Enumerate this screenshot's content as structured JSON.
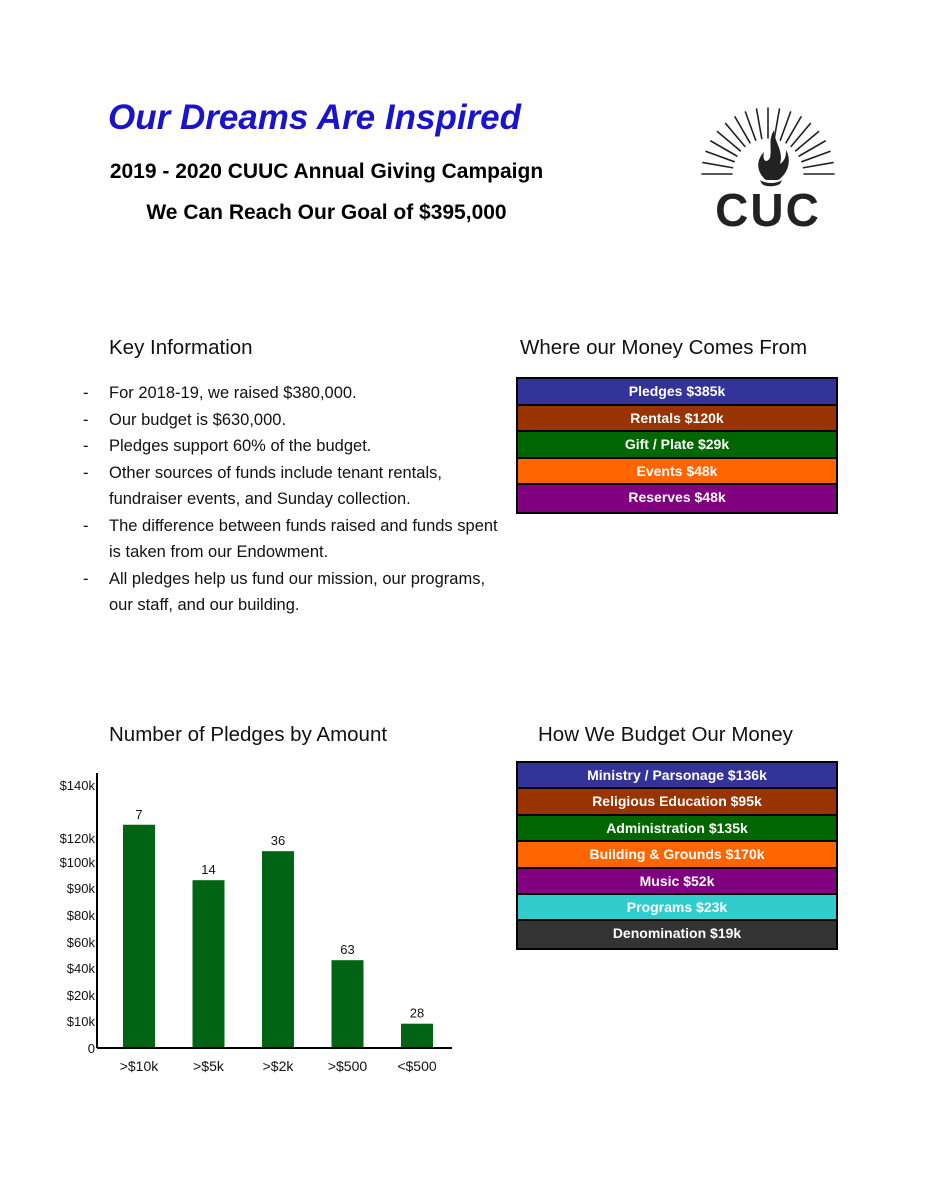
{
  "header": {
    "headline": "Our Dreams Are Inspired",
    "subtitle": "2019 - 2020 CUUC Annual Giving Campaign",
    "goal": "We Can Reach Our Goal of $395,000",
    "logo_text": "CUC"
  },
  "key_info": {
    "title": "Key Information",
    "bullet": "-",
    "items": [
      "For 2018-19, we raised $380,000.",
      "Our budget is $630,000.",
      "Pledges support 60% of the budget.",
      "Other sources of funds include tenant rentals, fundraiser events, and Sunday collection.",
      "The difference between funds raised and funds spent is taken from our Endowment.",
      "All pledges help us fund our mission, our programs, our staff, and our building."
    ]
  },
  "sources": {
    "title": "Where our Money Comes From",
    "items": [
      {
        "label": "Pledges  $385k",
        "color": "#333399"
      },
      {
        "label": "Rentals  $120k",
        "color": "#993300"
      },
      {
        "label": "Gift / Plate  $29k",
        "color": "#006600"
      },
      {
        "label": "Events  $48k",
        "color": "#ff6600"
      },
      {
        "label": "Reserves $48k",
        "color": "#800080"
      }
    ]
  },
  "budget": {
    "title": "How We Budget Our Money",
    "items": [
      {
        "label": "Ministry / Parsonage  $136k",
        "color": "#333399"
      },
      {
        "label": "Religious Education  $95k",
        "color": "#993300"
      },
      {
        "label": "Administration  $135k",
        "color": "#006600"
      },
      {
        "label": "Building & Grounds  $170k",
        "color": "#ff6600"
      },
      {
        "label": "Music  $52k",
        "color": "#800080"
      },
      {
        "label": "Programs  $23k",
        "color": "#33cccc"
      },
      {
        "label": "Denomination  $19k",
        "color": "#333333"
      }
    ]
  },
  "chart_data": {
    "type": "bar",
    "title": "Number of Pledges by Amount",
    "xlabel": "",
    "ylabel": "",
    "categories": [
      ">$10k",
      ">$5k",
      ">$2k",
      ">$500",
      "<$500"
    ],
    "values": [
      125000,
      93000,
      109000,
      46000,
      9000
    ],
    "data_labels": [
      "7",
      "14",
      "36",
      "63",
      "28"
    ],
    "y_ticks": [
      "0",
      "$10k",
      "$20k",
      "$40k",
      "$60k",
      "$80k",
      "$90k",
      "$100k",
      "$120k",
      "$140k"
    ],
    "bar_color": "#006414",
    "grid": false
  }
}
